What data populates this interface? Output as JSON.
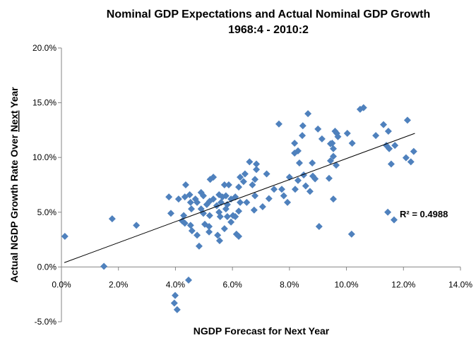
{
  "chart_data": {
    "type": "scatter",
    "title": "Nominal GDP Expectations and Actual Nominal GDP Growth",
    "subtitle": "1968:4 - 2010:2",
    "xlabel": "NGDP Forecast for Next Year",
    "ylabel_parts": [
      "Actual NGDP Growth Rate Over ",
      "Next",
      " Year"
    ],
    "xlim": [
      0,
      14
    ],
    "ylim": [
      -5,
      20
    ],
    "xticks": [
      0,
      2,
      4,
      6,
      8,
      10,
      12,
      14
    ],
    "yticks": [
      -5,
      0,
      5,
      10,
      15,
      20
    ],
    "xtick_labels": [
      "0.0%",
      "2.0%",
      "4.0%",
      "6.0%",
      "8.0%",
      "10.0%",
      "12.0%",
      "14.0%"
    ],
    "ytick_labels": [
      "-5.0%",
      "0.0%",
      "5.0%",
      "10.0%",
      "15.0%",
      "20.0%"
    ],
    "grid": false,
    "marker_color": "#4F81BD",
    "marker": "diamond",
    "trendline": {
      "type": "linear",
      "x_start": 0.1,
      "x_end": 12.4,
      "slope": 0.96,
      "intercept": 0.3,
      "color": "#000000"
    },
    "r2_label": "R² = 0.4988",
    "points": [
      [
        0.12,
        2.8
      ],
      [
        1.49,
        0.06
      ],
      [
        1.78,
        4.4
      ],
      [
        2.63,
        3.8
      ],
      [
        3.77,
        6.4
      ],
      [
        3.84,
        4.9
      ],
      [
        3.99,
        -2.6
      ],
      [
        3.96,
        -3.3
      ],
      [
        4.06,
        -3.9
      ],
      [
        4.46,
        -1.2
      ],
      [
        4.11,
        6.2
      ],
      [
        4.33,
        6.4
      ],
      [
        4.36,
        7.5
      ],
      [
        4.5,
        6.6
      ],
      [
        4.7,
        6.2
      ],
      [
        4.9,
        6.8
      ],
      [
        4.98,
        6.5
      ],
      [
        4.76,
        5.9
      ],
      [
        4.53,
        5.9
      ],
      [
        5.2,
        6.0
      ],
      [
        5.33,
        6.2
      ],
      [
        5.53,
        6.6
      ],
      [
        5.65,
        6.4
      ],
      [
        5.77,
        6.5
      ],
      [
        5.95,
        6.2
      ],
      [
        6.1,
        6.4
      ],
      [
        6.27,
        5.9
      ],
      [
        6.5,
        5.9
      ],
      [
        5.6,
        5.9
      ],
      [
        5.82,
        5.7
      ],
      [
        5.45,
        5.6
      ],
      [
        5.1,
        5.7
      ],
      [
        4.9,
        5.3
      ],
      [
        4.56,
        5.3
      ],
      [
        4.29,
        4.7
      ],
      [
        4.98,
        4.9
      ],
      [
        5.2,
        4.7
      ],
      [
        5.53,
        5.0
      ],
      [
        5.77,
        5.3
      ],
      [
        6.22,
        5.1
      ],
      [
        6.02,
        4.7
      ],
      [
        5.57,
        4.6
      ],
      [
        5.82,
        4.6
      ],
      [
        6.1,
        4.6
      ],
      [
        4.24,
        4.2
      ],
      [
        4.33,
        4.0
      ],
      [
        4.53,
        3.8
      ],
      [
        4.58,
        3.3
      ],
      [
        5.03,
        3.9
      ],
      [
        5.18,
        3.7
      ],
      [
        5.18,
        3.2
      ],
      [
        5.95,
        4.1
      ],
      [
        5.72,
        3.5
      ],
      [
        4.76,
        2.9
      ],
      [
        5.48,
        2.9
      ],
      [
        5.55,
        2.4
      ],
      [
        6.14,
        3.0
      ],
      [
        6.22,
        2.8
      ],
      [
        4.83,
        1.9
      ],
      [
        6.6,
        9.6
      ],
      [
        6.44,
        8.5
      ],
      [
        6.27,
        8.2
      ],
      [
        5.33,
        8.2
      ],
      [
        5.22,
        8.0
      ],
      [
        6.39,
        7.8
      ],
      [
        5.72,
        7.5
      ],
      [
        5.87,
        7.5
      ],
      [
        6.22,
        7.3
      ],
      [
        6.84,
        9.4
      ],
      [
        6.84,
        8.9
      ],
      [
        7.2,
        8.5
      ],
      [
        6.79,
        8.0
      ],
      [
        6.7,
        7.5
      ],
      [
        8.0,
        8.2
      ],
      [
        8.5,
        8.4
      ],
      [
        8.3,
        7.9
      ],
      [
        8.82,
        8.3
      ],
      [
        8.9,
        8.05
      ],
      [
        9.39,
        8.1
      ],
      [
        7.46,
        7.1
      ],
      [
        7.73,
        7.1
      ],
      [
        8.2,
        7.1
      ],
      [
        8.57,
        7.4
      ],
      [
        8.72,
        6.9
      ],
      [
        7.8,
        6.5
      ],
      [
        7.93,
        5.9
      ],
      [
        7.28,
        6.24
      ],
      [
        6.79,
        6.5
      ],
      [
        7.06,
        5.5
      ],
      [
        6.76,
        5.2
      ],
      [
        9.54,
        6.2
      ],
      [
        11.45,
        5.0
      ],
      [
        11.67,
        4.3
      ],
      [
        9.04,
        3.7
      ],
      [
        10.18,
        3.0
      ],
      [
        7.63,
        13.06
      ],
      [
        8.65,
        14.0
      ],
      [
        10.48,
        14.4
      ],
      [
        10.6,
        14.55
      ],
      [
        8.47,
        12.9
      ],
      [
        9.0,
        12.6
      ],
      [
        9.6,
        12.4
      ],
      [
        9.66,
        12.2
      ],
      [
        9.7,
        11.9
      ],
      [
        10.03,
        12.2
      ],
      [
        11.3,
        13.0
      ],
      [
        12.14,
        13.4
      ],
      [
        11.47,
        12.4
      ],
      [
        11.03,
        12.0
      ],
      [
        8.45,
        12.0
      ],
      [
        9.14,
        11.7
      ],
      [
        8.18,
        11.3
      ],
      [
        9.5,
        11.3
      ],
      [
        9.44,
        11.25
      ],
      [
        10.2,
        11.3
      ],
      [
        9.54,
        10.8
      ],
      [
        11.4,
        11.1
      ],
      [
        11.5,
        10.8
      ],
      [
        11.7,
        11.1
      ],
      [
        12.36,
        10.55
      ],
      [
        8.3,
        10.6
      ],
      [
        8.18,
        10.4
      ],
      [
        9.54,
        10.1
      ],
      [
        9.44,
        9.7
      ],
      [
        9.64,
        9.3
      ],
      [
        8.35,
        9.5
      ],
      [
        8.8,
        9.5
      ],
      [
        11.57,
        9.4
      ],
      [
        12.09,
        9.97
      ],
      [
        12.26,
        9.6
      ]
    ]
  }
}
